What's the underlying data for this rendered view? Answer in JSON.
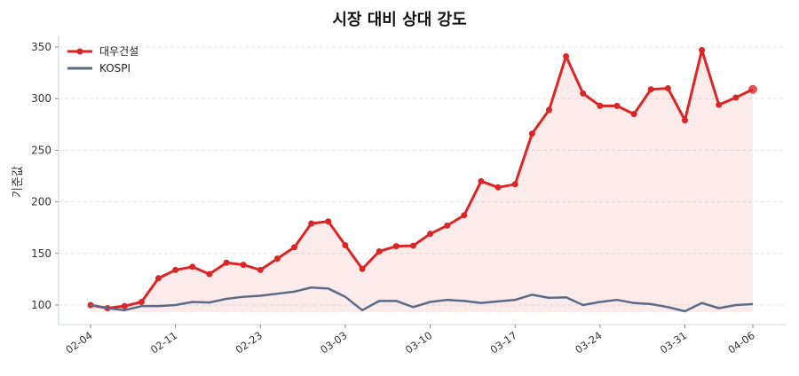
{
  "chart_data": {
    "type": "line",
    "title": "시장 대비 상대 강도",
    "xlabel": "",
    "ylabel": "기준값",
    "ylim": [
      82,
      362
    ],
    "yticks": [
      100,
      150,
      200,
      250,
      300,
      350
    ],
    "grid": true,
    "legend": "top-left",
    "x": [
      "02-04",
      "02-05",
      "02-06",
      "02-09",
      "02-10",
      "02-11",
      "02-12",
      "02-13",
      "02-19",
      "02-20",
      "02-23",
      "02-24",
      "02-25",
      "02-26",
      "02-27",
      "03-03",
      "03-04",
      "03-05",
      "03-06",
      "03-09",
      "03-10",
      "03-11",
      "03-12",
      "03-13",
      "03-16",
      "03-17",
      "03-18",
      "03-19",
      "03-20",
      "03-23",
      "03-24",
      "03-25",
      "03-26",
      "03-27",
      "03-30",
      "03-31",
      "04-01",
      "04-02",
      "04-03",
      "04-06"
    ],
    "xtick_labels": [
      "02-04",
      "02-11",
      "02-23",
      "03-03",
      "03-10",
      "03-17",
      "03-24",
      "03-31",
      "04-06"
    ],
    "series": [
      {
        "name": "대우건설",
        "color": "#dc2626",
        "markers": true,
        "fill": true,
        "values": [
          100,
          97,
          99,
          103,
          126,
          134,
          137,
          130,
          141,
          139,
          134,
          145,
          156,
          179,
          181,
          158,
          135,
          152,
          157,
          157.5,
          169,
          177,
          187,
          220,
          214,
          217,
          266,
          289,
          341,
          305,
          293,
          293,
          285,
          309,
          310,
          279,
          347,
          294,
          301,
          309
        ]
      },
      {
        "name": "KOSPI",
        "color": "#5b6b86",
        "markers": false,
        "fill": false,
        "values": [
          100,
          97,
          95,
          99,
          99,
          100,
          103,
          102.5,
          106,
          108,
          109,
          111,
          113,
          117,
          116,
          108,
          95,
          104,
          104,
          98,
          103,
          105,
          104,
          102,
          103.5,
          105,
          110,
          107,
          107.5,
          100,
          103,
          105,
          102,
          101,
          98,
          94,
          102,
          97,
          100,
          101
        ]
      }
    ]
  }
}
